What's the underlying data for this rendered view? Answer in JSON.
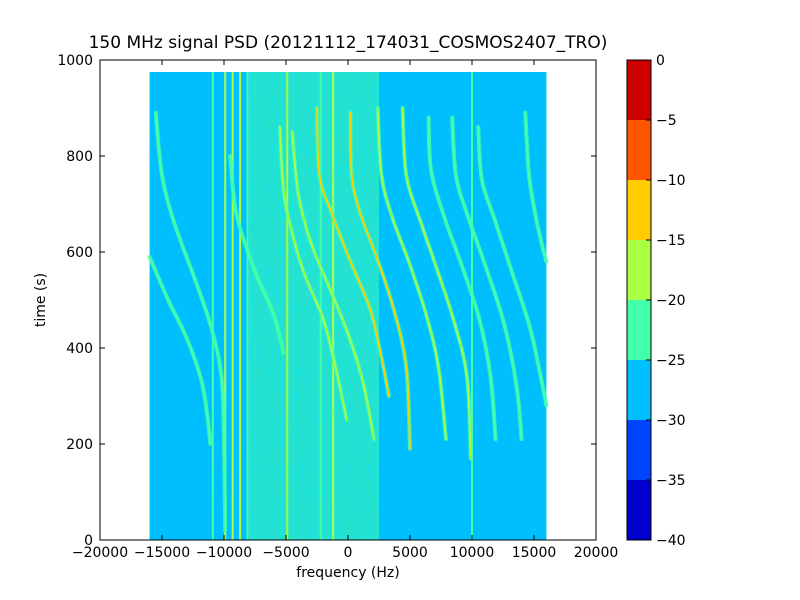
{
  "chart_data": {
    "type": "heatmap",
    "title": "150 MHz signal PSD (20121112_174031_COSMOS2407_TRO)",
    "xlabel": "frequency (Hz)",
    "ylabel": "time (s)",
    "xlim": [
      -20000,
      20000
    ],
    "ylim": [
      0,
      1000
    ],
    "x_ticks": [
      -20000,
      -15000,
      -10000,
      -5000,
      0,
      5000,
      10000,
      15000,
      20000
    ],
    "x_tick_labels": [
      "−20000",
      "−15000",
      "−10000",
      "−5000",
      "0",
      "5000",
      "10000",
      "15000",
      "20000"
    ],
    "y_ticks": [
      0,
      200,
      400,
      600,
      800,
      1000
    ],
    "y_tick_labels": [
      "0",
      "200",
      "400",
      "600",
      "800",
      "1000"
    ],
    "data_extent": {
      "x": [
        -16000,
        16000
      ],
      "y": [
        0,
        975
      ]
    },
    "background_level": -27.5,
    "noise_band": {
      "x": [
        -8000,
        2500
      ],
      "level": -22.5
    },
    "colorbar": {
      "levels": [
        -40,
        -35,
        -30,
        -25,
        -20,
        -15,
        -10,
        -5,
        0
      ],
      "tick_labels": [
        "−40",
        "−35",
        "−30",
        "−25",
        "−20",
        "−15",
        "−10",
        "−5",
        "0"
      ],
      "colors": [
        "#0000cc",
        "#0044ff",
        "#00bfff",
        "#44ffaa",
        "#aaff44",
        "#ffcc00",
        "#ff5500",
        "#cc0000"
      ]
    },
    "vertical_lines": [
      {
        "x": -10900,
        "level": -22.5
      },
      {
        "x": -9900,
        "level": -17.5
      },
      {
        "x": -9300,
        "level": -17.5
      },
      {
        "x": -8700,
        "level": -17.5
      },
      {
        "x": -8100,
        "level": -22.5
      },
      {
        "x": -4900,
        "level": -17.5
      },
      {
        "x": -2200,
        "level": -22.5
      },
      {
        "x": -1200,
        "level": -17.5
      },
      {
        "x": 10000,
        "level": -22.5
      }
    ],
    "traces": [
      {
        "points": [
          [
            -16000,
            590
          ],
          [
            -14500,
            500
          ],
          [
            -13000,
            420
          ],
          [
            -11800,
            330
          ],
          [
            -11300,
            250
          ],
          [
            -11100,
            200
          ]
        ],
        "level": -22.5
      },
      {
        "points": [
          [
            -15500,
            890
          ],
          [
            -15000,
            760
          ],
          [
            -14000,
            660
          ],
          [
            -12300,
            540
          ],
          [
            -11000,
            440
          ],
          [
            -10200,
            340
          ],
          [
            -10000,
            200
          ],
          [
            -9900,
            20
          ]
        ],
        "level": -22.5
      },
      {
        "points": [
          [
            -9500,
            800
          ],
          [
            -9000,
            680
          ],
          [
            -7500,
            560
          ],
          [
            -6000,
            470
          ],
          [
            -5200,
            390
          ]
        ],
        "level": -22.5
      },
      {
        "points": [
          [
            -5500,
            860
          ],
          [
            -5200,
            730
          ],
          [
            -4600,
            650
          ],
          [
            -3600,
            560
          ],
          [
            -2000,
            460
          ],
          [
            -1000,
            360
          ],
          [
            -100,
            250
          ]
        ],
        "level": -17.5
      },
      {
        "points": [
          [
            -4500,
            850
          ],
          [
            -4000,
            720
          ],
          [
            -3000,
            620
          ],
          [
            -1400,
            520
          ],
          [
            0,
            430
          ],
          [
            1200,
            330
          ],
          [
            2100,
            210
          ]
        ],
        "level": -17.5
      },
      {
        "points": [
          [
            -2500,
            900
          ],
          [
            -2300,
            760
          ],
          [
            -1300,
            680
          ],
          [
            200,
            580
          ],
          [
            1800,
            480
          ],
          [
            2700,
            380
          ],
          [
            3300,
            300
          ]
        ],
        "level": -12.5
      },
      {
        "points": [
          [
            200,
            890
          ],
          [
            300,
            760
          ],
          [
            1000,
            680
          ],
          [
            2300,
            590
          ],
          [
            3700,
            480
          ],
          [
            4700,
            360
          ],
          [
            5000,
            190
          ]
        ],
        "level": -12.5
      },
      {
        "points": [
          [
            2400,
            900
          ],
          [
            2700,
            760
          ],
          [
            3600,
            670
          ],
          [
            4900,
            580
          ],
          [
            6300,
            470
          ],
          [
            7300,
            360
          ],
          [
            7900,
            210
          ]
        ],
        "level": -17.5
      },
      {
        "points": [
          [
            4400,
            900
          ],
          [
            4700,
            760
          ],
          [
            5900,
            660
          ],
          [
            7100,
            570
          ],
          [
            8500,
            460
          ],
          [
            9600,
            340
          ],
          [
            9900,
            170
          ]
        ],
        "level": -17.5
      },
      {
        "points": [
          [
            6500,
            880
          ],
          [
            6700,
            770
          ],
          [
            7800,
            670
          ],
          [
            9200,
            570
          ],
          [
            10600,
            460
          ],
          [
            11500,
            340
          ],
          [
            11900,
            210
          ]
        ],
        "level": -22.5
      },
      {
        "points": [
          [
            8400,
            880
          ],
          [
            8700,
            760
          ],
          [
            9600,
            680
          ],
          [
            11100,
            570
          ],
          [
            12600,
            450
          ],
          [
            13600,
            320
          ],
          [
            14000,
            210
          ]
        ],
        "level": -22.5
      },
      {
        "points": [
          [
            10500,
            860
          ],
          [
            10800,
            750
          ],
          [
            11800,
            670
          ],
          [
            13200,
            560
          ],
          [
            14700,
            440
          ],
          [
            15700,
            320
          ],
          [
            16000,
            280
          ]
        ],
        "level": -22.5
      },
      {
        "points": [
          [
            14300,
            890
          ],
          [
            14600,
            760
          ],
          [
            15100,
            680
          ],
          [
            15600,
            620
          ],
          [
            16000,
            580
          ]
        ],
        "level": -22.5
      }
    ]
  }
}
